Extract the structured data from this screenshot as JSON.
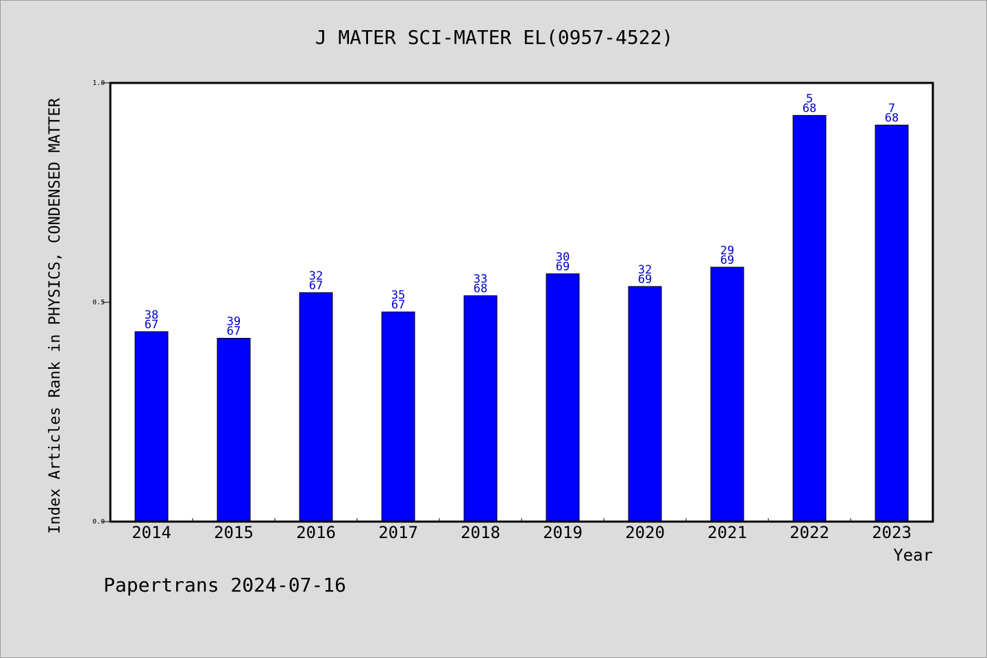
{
  "chart_data": {
    "type": "bar",
    "title": "J MATER SCI-MATER EL(0957-4522)",
    "xlabel": "Year",
    "ylabel": "Index Articles Rank in PHYSICS, CONDENSED MATTER",
    "ylim": [
      0.0,
      1.0
    ],
    "yticks": [
      "0.0",
      "0.5",
      "1.0"
    ],
    "categories": [
      "2014",
      "2015",
      "2016",
      "2017",
      "2018",
      "2019",
      "2020",
      "2021",
      "2022",
      "2023"
    ],
    "values": [
      0.433,
      0.418,
      0.522,
      0.478,
      0.515,
      0.565,
      0.536,
      0.58,
      0.926,
      0.904
    ],
    "ranks": [
      "38",
      "39",
      "32",
      "35",
      "33",
      "30",
      "32",
      "29",
      "5",
      "7"
    ],
    "totals": [
      "67",
      "67",
      "67",
      "67",
      "68",
      "69",
      "69",
      "69",
      "68",
      "68"
    ],
    "bar_color": "#0000ff",
    "label_color": "#0000cc",
    "grid": false,
    "legend": "none"
  },
  "footer": "Papertrans 2024-07-16"
}
